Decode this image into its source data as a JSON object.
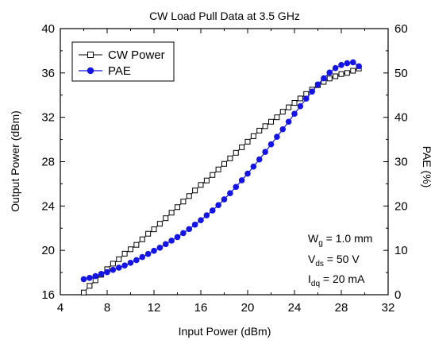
{
  "chart_data": {
    "type": "line",
    "title": "CW Load Pull Data at 3.5 GHz",
    "xlabel": "Input Power (dBm)",
    "ylabel_left": "Output Power (dBm)",
    "ylabel_right": "PAE (%)",
    "xlim": [
      4,
      32
    ],
    "ylim_left": [
      16,
      40
    ],
    "ylim_right": [
      0,
      60
    ],
    "xticks": [
      "4",
      "8",
      "12",
      "16",
      "20",
      "24",
      "28",
      "32"
    ],
    "yticks_left": [
      "16",
      "20",
      "24",
      "28",
      "32",
      "36",
      "40"
    ],
    "yticks_right": [
      "0",
      "10",
      "20",
      "30",
      "40",
      "50",
      "60"
    ],
    "grid": false,
    "legend_position": "top-left",
    "series": [
      {
        "name": "CW Power",
        "axis": "left",
        "color": "#000000",
        "marker": "open-square",
        "x": [
          6,
          6.5,
          7,
          7.5,
          8,
          8.5,
          9,
          9.5,
          10,
          10.5,
          11,
          11.5,
          12,
          12.5,
          13,
          13.5,
          14,
          14.5,
          15,
          15.5,
          16,
          16.5,
          17,
          17.5,
          18,
          18.5,
          19,
          19.5,
          20,
          20.5,
          21,
          21.5,
          22,
          22.5,
          23,
          23.5,
          24,
          24.5,
          25,
          25.5,
          26,
          26.5,
          27,
          27.5,
          28,
          28.5,
          29,
          29.5
        ],
        "y": [
          16.2,
          16.8,
          17.3,
          17.8,
          18.3,
          18.8,
          19.2,
          19.7,
          20.1,
          20.5,
          21.0,
          21.5,
          21.9,
          22.4,
          22.9,
          23.4,
          23.9,
          24.4,
          24.9,
          25.4,
          25.9,
          26.3,
          26.8,
          27.3,
          27.8,
          28.3,
          28.8,
          29.3,
          29.8,
          30.3,
          30.8,
          31.2,
          31.6,
          32.0,
          32.5,
          32.9,
          33.3,
          33.7,
          34.1,
          34.5,
          34.9,
          35.2,
          35.5,
          35.7,
          35.9,
          36.0,
          36.2,
          36.4
        ]
      },
      {
        "name": "PAE",
        "axis": "right",
        "color": "#1414e6",
        "marker": "filled-circle",
        "x": [
          6,
          6.5,
          7,
          7.5,
          8,
          8.5,
          9,
          9.5,
          10,
          10.5,
          11,
          11.5,
          12,
          12.5,
          13,
          13.5,
          14,
          14.5,
          15,
          15.5,
          16,
          16.5,
          17,
          17.5,
          18,
          18.5,
          19,
          19.5,
          20,
          20.5,
          21,
          21.5,
          22,
          22.5,
          23,
          23.5,
          24,
          24.5,
          25,
          25.5,
          26,
          26.5,
          27,
          27.5,
          28,
          28.5,
          29,
          29.5
        ],
        "y": [
          3.5,
          3.8,
          4.2,
          4.7,
          5.1,
          5.6,
          6.1,
          6.6,
          7.2,
          7.8,
          8.5,
          9.2,
          9.9,
          10.6,
          11.4,
          12.2,
          13.0,
          13.9,
          14.8,
          15.8,
          16.8,
          17.9,
          19.0,
          20.2,
          21.5,
          22.9,
          24.3,
          25.8,
          27.3,
          28.9,
          30.5,
          32.2,
          33.9,
          35.6,
          37.3,
          39.0,
          40.8,
          42.5,
          44.2,
          45.8,
          47.4,
          48.8,
          50.1,
          51.1,
          51.8,
          52.2,
          52.4,
          51.5
        ]
      }
    ],
    "annotations": {
      "line1_main": "W",
      "line1_sub": "g",
      "line1_rest": " = 1.0 mm",
      "line2_main": "V",
      "line2_sub": "ds",
      "line2_rest": " = 50 V",
      "line3_main": "I",
      "line3_sub": "dq",
      "line3_rest": " = 20 mA"
    }
  }
}
